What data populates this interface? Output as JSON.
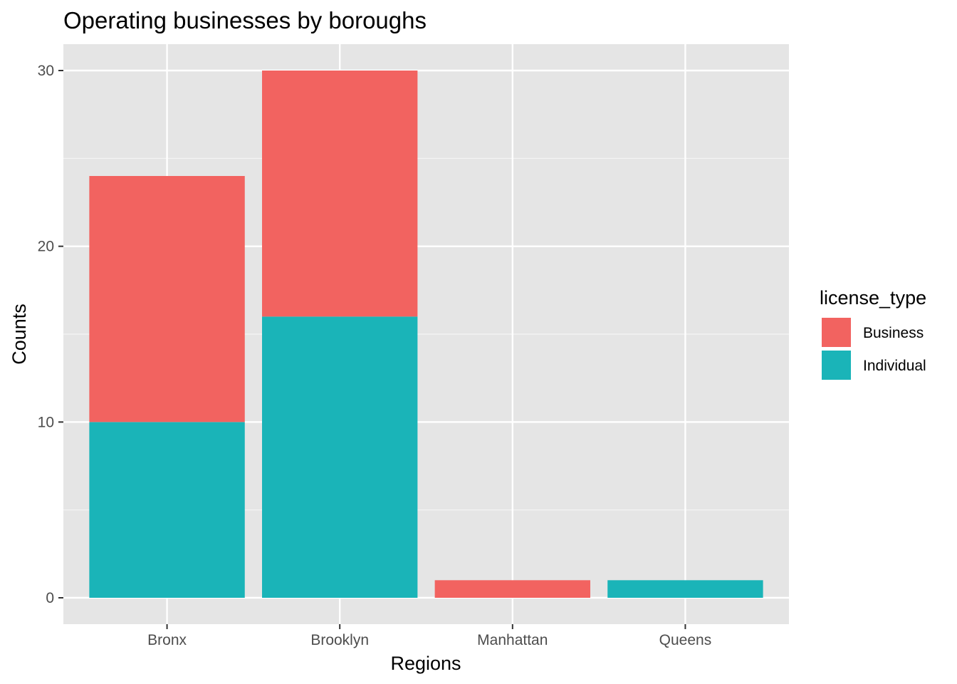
{
  "chart_data": {
    "type": "bar",
    "stacked": true,
    "title": "Operating businesses by boroughs",
    "xlabel": "Regions",
    "ylabel": "Counts",
    "categories": [
      "Bronx",
      "Brooklyn",
      "Manhattan",
      "Queens"
    ],
    "ylim": [
      -1.5,
      31.5
    ],
    "yticks": [
      0,
      10,
      20,
      30
    ],
    "grid": true,
    "legend": {
      "title": "license_type",
      "position": "right"
    },
    "series": [
      {
        "name": "Business",
        "color": "#F8766D",
        "values": [
          14,
          14,
          1,
          0
        ]
      },
      {
        "name": "Individual",
        "color": "#00BFC4",
        "values": [
          10,
          16,
          0,
          1
        ]
      }
    ],
    "panel_color": "#EBEBEB",
    "bar_colors": {
      "Business": "#F26360",
      "Individual": "#1AB4B8"
    }
  }
}
